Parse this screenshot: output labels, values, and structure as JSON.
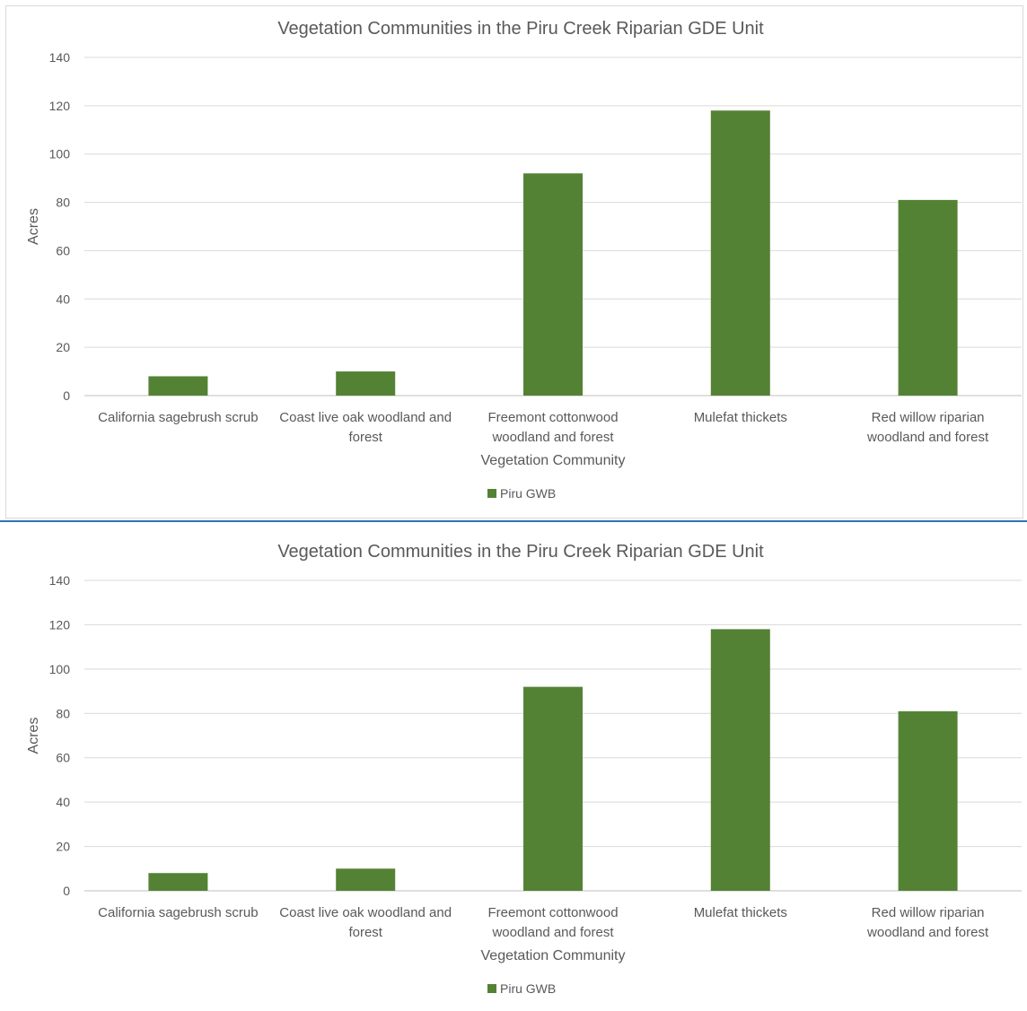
{
  "chart_data": [
    {
      "type": "bar",
      "title": "Vegetation Communities in the Piru Creek Riparian GDE Unit",
      "xlabel": "Vegetation Community",
      "ylabel": "Acres",
      "ylim": [
        0,
        140
      ],
      "yticks": [
        0,
        20,
        40,
        60,
        80,
        100,
        120,
        140
      ],
      "categories": [
        [
          "California sagebrush scrub"
        ],
        [
          "Coast live oak woodland and",
          "forest"
        ],
        [
          "Freemont cottonwood",
          "woodland and forest"
        ],
        [
          "Mulefat thickets"
        ],
        [
          "Red willow riparian",
          "woodland and forest"
        ]
      ],
      "series": [
        {
          "name": "Piru GWB",
          "values": [
            8,
            10,
            92,
            118,
            81
          ],
          "color": "#548235"
        }
      ],
      "grid": true,
      "legend": "bottom"
    },
    {
      "type": "bar",
      "title": "Vegetation Communities in the Piru Creek Riparian GDE Unit",
      "xlabel": "Vegetation Community",
      "ylabel": "Acres",
      "ylim": [
        0,
        140
      ],
      "yticks": [
        0,
        20,
        40,
        60,
        80,
        100,
        120,
        140
      ],
      "categories": [
        [
          "California sagebrush scrub"
        ],
        [
          "Coast live oak woodland and",
          "forest"
        ],
        [
          "Freemont cottonwood",
          "woodland and forest"
        ],
        [
          "Mulefat thickets"
        ],
        [
          "Red willow riparian",
          "woodland and forest"
        ]
      ],
      "series": [
        {
          "name": "Piru GWB",
          "values": [
            8,
            10,
            92,
            118,
            81
          ],
          "color": "#548235"
        }
      ],
      "grid": true,
      "legend": "bottom"
    }
  ]
}
